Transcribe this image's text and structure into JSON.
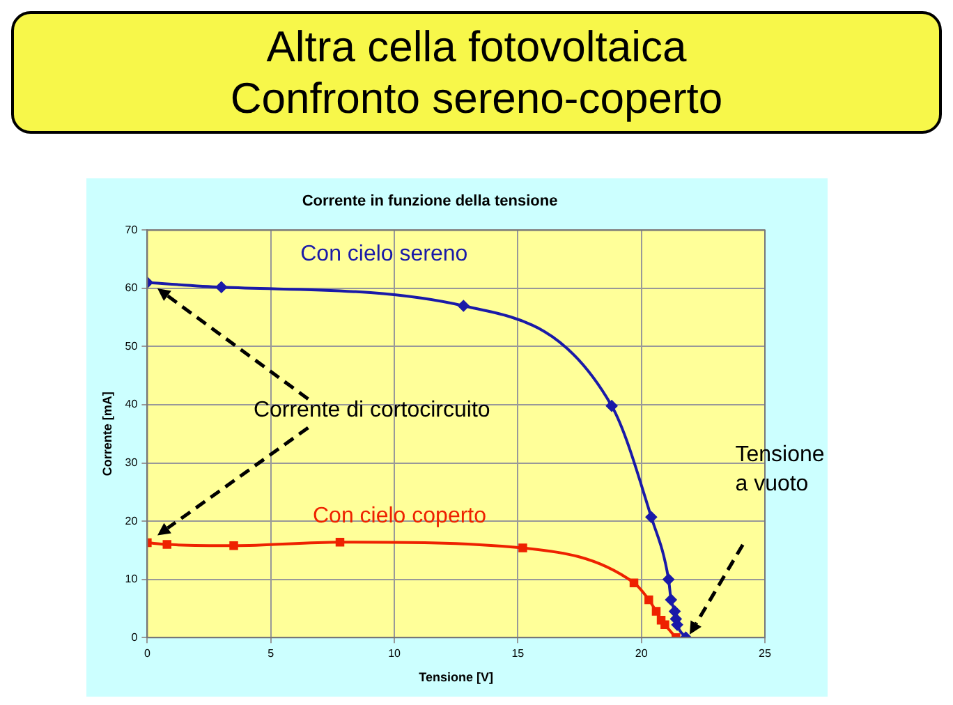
{
  "chart_data": {
    "type": "line",
    "title": "Altra cella fotovoltaica\nConfronto sereno-coperto",
    "subtitle": "Corrente in funzione della tensione",
    "xlabel": "Tensione [V]",
    "ylabel": "Corrente [mA]",
    "xlim": [
      0,
      25
    ],
    "xticks": [
      0,
      5,
      10,
      15,
      20,
      25
    ],
    "ylim": [
      0,
      70
    ],
    "yticks": [
      0,
      10,
      20,
      30,
      40,
      50,
      60,
      70
    ],
    "grid": true,
    "legend": false,
    "series": [
      {
        "name": "Con cielo sereno",
        "color": "#1a1aa8",
        "marker": "diamond",
        "x": [
          0,
          3,
          12.8,
          18.8,
          20.4,
          21.1,
          21.2,
          21.35,
          21.4,
          21.45,
          21.8
        ],
        "values": [
          61,
          60.2,
          57,
          39.8,
          20.7,
          10,
          6.5,
          4.5,
          3.2,
          2.2,
          0
        ]
      },
      {
        "name": "Con cielo coperto",
        "color": "#ee2200",
        "marker": "square",
        "x": [
          0,
          0.8,
          3.5,
          7.8,
          15.2,
          19.7,
          20.3,
          20.6,
          20.8,
          20.95,
          21.4
        ],
        "values": [
          16.3,
          16,
          15.8,
          16.4,
          15.4,
          9.4,
          6.5,
          4.5,
          3,
          2.2,
          0
        ]
      }
    ],
    "annotations": [
      "Corrente di cortocircuito",
      "Tensione\na vuoto"
    ]
  }
}
